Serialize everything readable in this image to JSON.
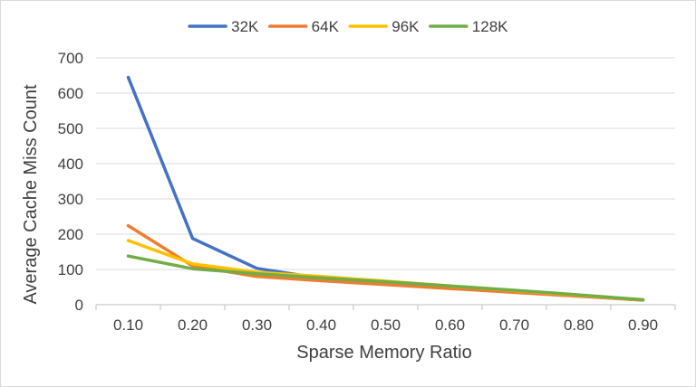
{
  "chart_data": {
    "type": "line",
    "title": "",
    "xlabel": "Sparse Memory Ratio",
    "ylabel": "Average Cache Miss Count",
    "x": [
      "0.10",
      "0.20",
      "0.30",
      "0.40",
      "0.50",
      "0.60",
      "0.70",
      "0.80",
      "0.90"
    ],
    "ylim": [
      0,
      700
    ],
    "yticks": [
      0,
      100,
      200,
      300,
      400,
      500,
      600,
      700
    ],
    "grid": true,
    "legend_position": "top",
    "series": [
      {
        "name": "32K",
        "color": "#4472C4",
        "values": [
          645,
          188,
          103,
          75,
          60,
          47,
          36,
          25,
          13
        ]
      },
      {
        "name": "64K",
        "color": "#ED7D31",
        "values": [
          224,
          110,
          80,
          68,
          57,
          46,
          35,
          24,
          13
        ]
      },
      {
        "name": "96K",
        "color": "#FFC000",
        "values": [
          182,
          116,
          92,
          80,
          67,
          53,
          40,
          27,
          14
        ]
      },
      {
        "name": "128K",
        "color": "#70AD47",
        "values": [
          138,
          102,
          88,
          76,
          65,
          53,
          41,
          28,
          14
        ]
      }
    ]
  }
}
